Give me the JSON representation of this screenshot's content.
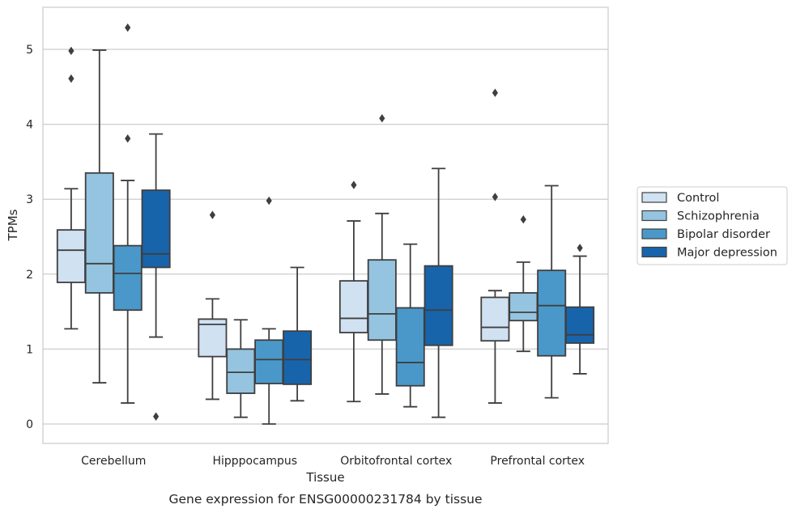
{
  "chart_data": {
    "type": "box",
    "caption": "Gene expression for ENSG00000231784 by tissue",
    "xlabel": "Tissue",
    "ylabel": "TPMs",
    "ylim": [
      -0.25,
      5.55
    ],
    "yticks": [
      0,
      1,
      2,
      3,
      4,
      5
    ],
    "grid": "horizontal",
    "legend_position": "right",
    "categories": [
      "Cerebellum",
      "Hipppocampus",
      "Orbitofrontal cortex",
      "Prefrontal cortex"
    ],
    "series": [
      {
        "name": "Control",
        "color": "#d0e1f2",
        "boxes": [
          {
            "whisker_low": 1.27,
            "q1": 1.89,
            "median": 2.32,
            "q3": 2.59,
            "whisker_high": 3.14,
            "outliers": [
              4.98,
              4.61
            ]
          },
          {
            "whisker_low": 0.33,
            "q1": 0.9,
            "median": 1.33,
            "q3": 1.4,
            "whisker_high": 1.67,
            "outliers": [
              2.79
            ]
          },
          {
            "whisker_low": 0.3,
            "q1": 1.22,
            "median": 1.41,
            "q3": 1.91,
            "whisker_high": 2.71,
            "outliers": [
              3.19
            ]
          },
          {
            "whisker_low": 0.28,
            "q1": 1.11,
            "median": 1.29,
            "q3": 1.69,
            "whisker_high": 1.78,
            "outliers": [
              4.42,
              3.03
            ]
          }
        ]
      },
      {
        "name": "Schizophrenia",
        "color": "#94c4df",
        "boxes": [
          {
            "whisker_low": 0.55,
            "q1": 1.75,
            "median": 2.14,
            "q3": 3.35,
            "whisker_high": 4.99,
            "outliers": []
          },
          {
            "whisker_low": 0.09,
            "q1": 0.41,
            "median": 0.69,
            "q3": 1.0,
            "whisker_high": 1.39,
            "outliers": []
          },
          {
            "whisker_low": 0.4,
            "q1": 1.12,
            "median": 1.47,
            "q3": 2.19,
            "whisker_high": 2.81,
            "outliers": [
              4.08
            ]
          },
          {
            "whisker_low": 0.97,
            "q1": 1.38,
            "median": 1.49,
            "q3": 1.75,
            "whisker_high": 2.16,
            "outliers": [
              2.73
            ]
          }
        ]
      },
      {
        "name": "Bipolar disorder",
        "color": "#4a98c9",
        "boxes": [
          {
            "whisker_low": 0.28,
            "q1": 1.52,
            "median": 2.01,
            "q3": 2.38,
            "whisker_high": 3.25,
            "outliers": [
              5.29,
              3.81
            ]
          },
          {
            "whisker_low": 0.0,
            "q1": 0.54,
            "median": 0.86,
            "q3": 1.12,
            "whisker_high": 1.27,
            "outliers": [
              2.98
            ]
          },
          {
            "whisker_low": 0.23,
            "q1": 0.51,
            "median": 0.82,
            "q3": 1.55,
            "whisker_high": 2.4,
            "outliers": []
          },
          {
            "whisker_low": 0.35,
            "q1": 0.91,
            "median": 1.58,
            "q3": 2.05,
            "whisker_high": 3.18,
            "outliers": []
          }
        ]
      },
      {
        "name": "Major depression",
        "color": "#1764ab",
        "boxes": [
          {
            "whisker_low": 1.16,
            "q1": 2.09,
            "median": 2.27,
            "q3": 3.12,
            "whisker_high": 3.87,
            "outliers": [
              0.1
            ]
          },
          {
            "whisker_low": 0.31,
            "q1": 0.53,
            "median": 0.86,
            "q3": 1.24,
            "whisker_high": 2.09,
            "outliers": []
          },
          {
            "whisker_low": 0.09,
            "q1": 1.05,
            "median": 1.52,
            "q3": 2.11,
            "whisker_high": 3.41,
            "outliers": []
          },
          {
            "whisker_low": 0.67,
            "q1": 1.08,
            "median": 1.19,
            "q3": 1.56,
            "whisker_high": 2.24,
            "outliers": [
              2.35
            ]
          }
        ]
      }
    ]
  }
}
